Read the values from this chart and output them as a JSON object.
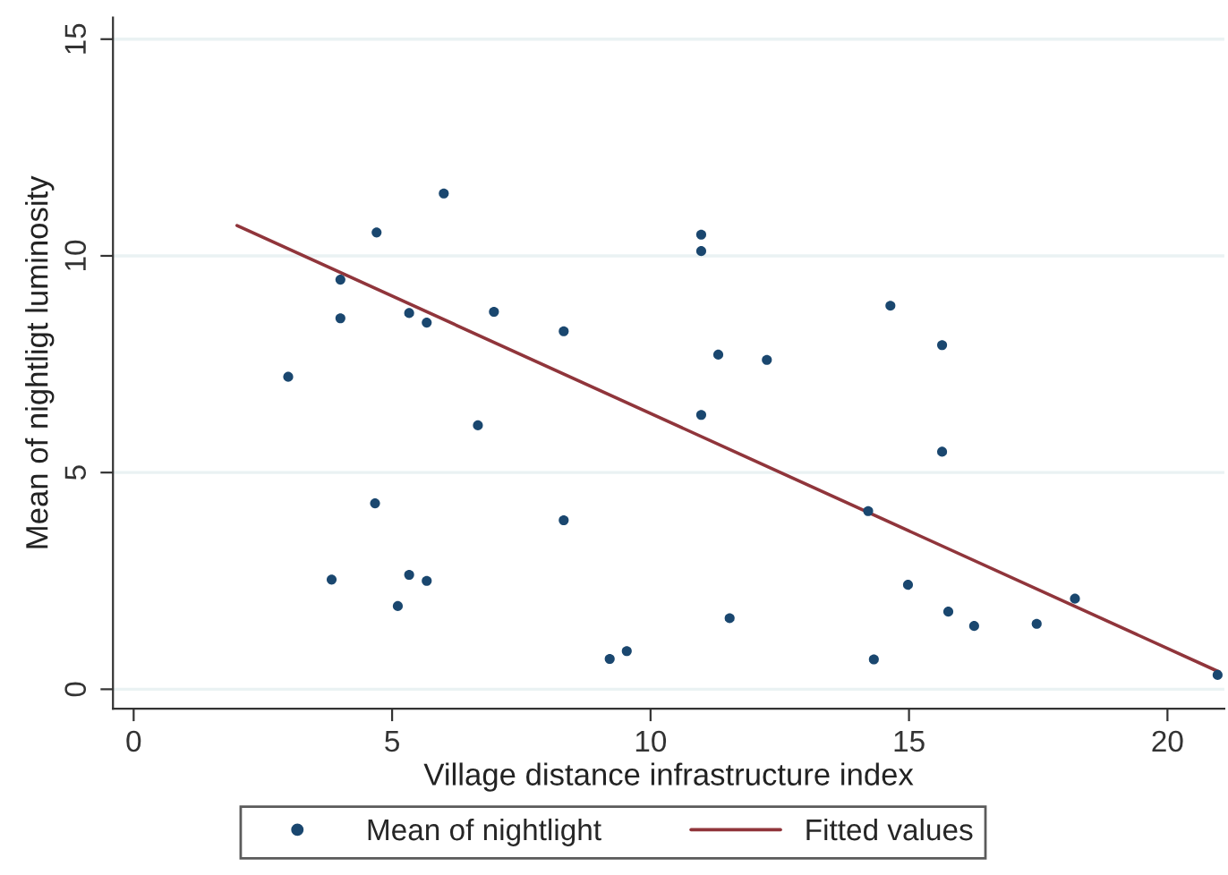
{
  "chart_data": {
    "type": "scatter",
    "xlabel": "Village distance infrastructure index",
    "ylabel": "Mean of nightligt luminosity",
    "xlim": [
      -0.4,
      21.1
    ],
    "ylim": [
      -0.45,
      15.5
    ],
    "xticks": [
      0,
      5,
      10,
      15,
      20
    ],
    "yticks": [
      0,
      5,
      10,
      15
    ],
    "grid": "y",
    "legend": "bottom",
    "series": [
      {
        "name": "Mean of nightlight",
        "color": "#1a476f",
        "marker": "circle",
        "x": [
          6.0,
          4.7,
          4.0,
          4.0,
          5.33,
          5.67,
          6.97,
          8.32,
          2.99,
          6.66,
          4.67,
          8.32,
          3.83,
          5.33,
          5.67,
          5.11,
          9.21,
          9.54,
          10.98,
          10.98,
          14.64,
          11.31,
          12.25,
          15.64,
          10.98,
          15.64,
          14.21,
          14.98,
          11.53,
          15.76,
          16.26,
          17.47,
          18.21,
          14.32,
          20.97
        ],
        "values": [
          11.44,
          10.54,
          9.45,
          8.56,
          8.68,
          8.46,
          8.71,
          8.26,
          7.21,
          6.09,
          4.29,
          3.9,
          2.53,
          2.64,
          2.5,
          1.92,
          0.7,
          0.88,
          10.49,
          10.11,
          8.85,
          7.72,
          7.6,
          7.94,
          6.33,
          5.48,
          4.11,
          2.41,
          1.64,
          1.79,
          1.46,
          1.51,
          2.09,
          0.69,
          0.33
        ]
      },
      {
        "name": "Fitted values",
        "color": "#90353b",
        "type": "line",
        "marker": "none",
        "x": [
          2.0,
          21.0
        ],
        "values": [
          10.7,
          0.4
        ]
      }
    ]
  }
}
